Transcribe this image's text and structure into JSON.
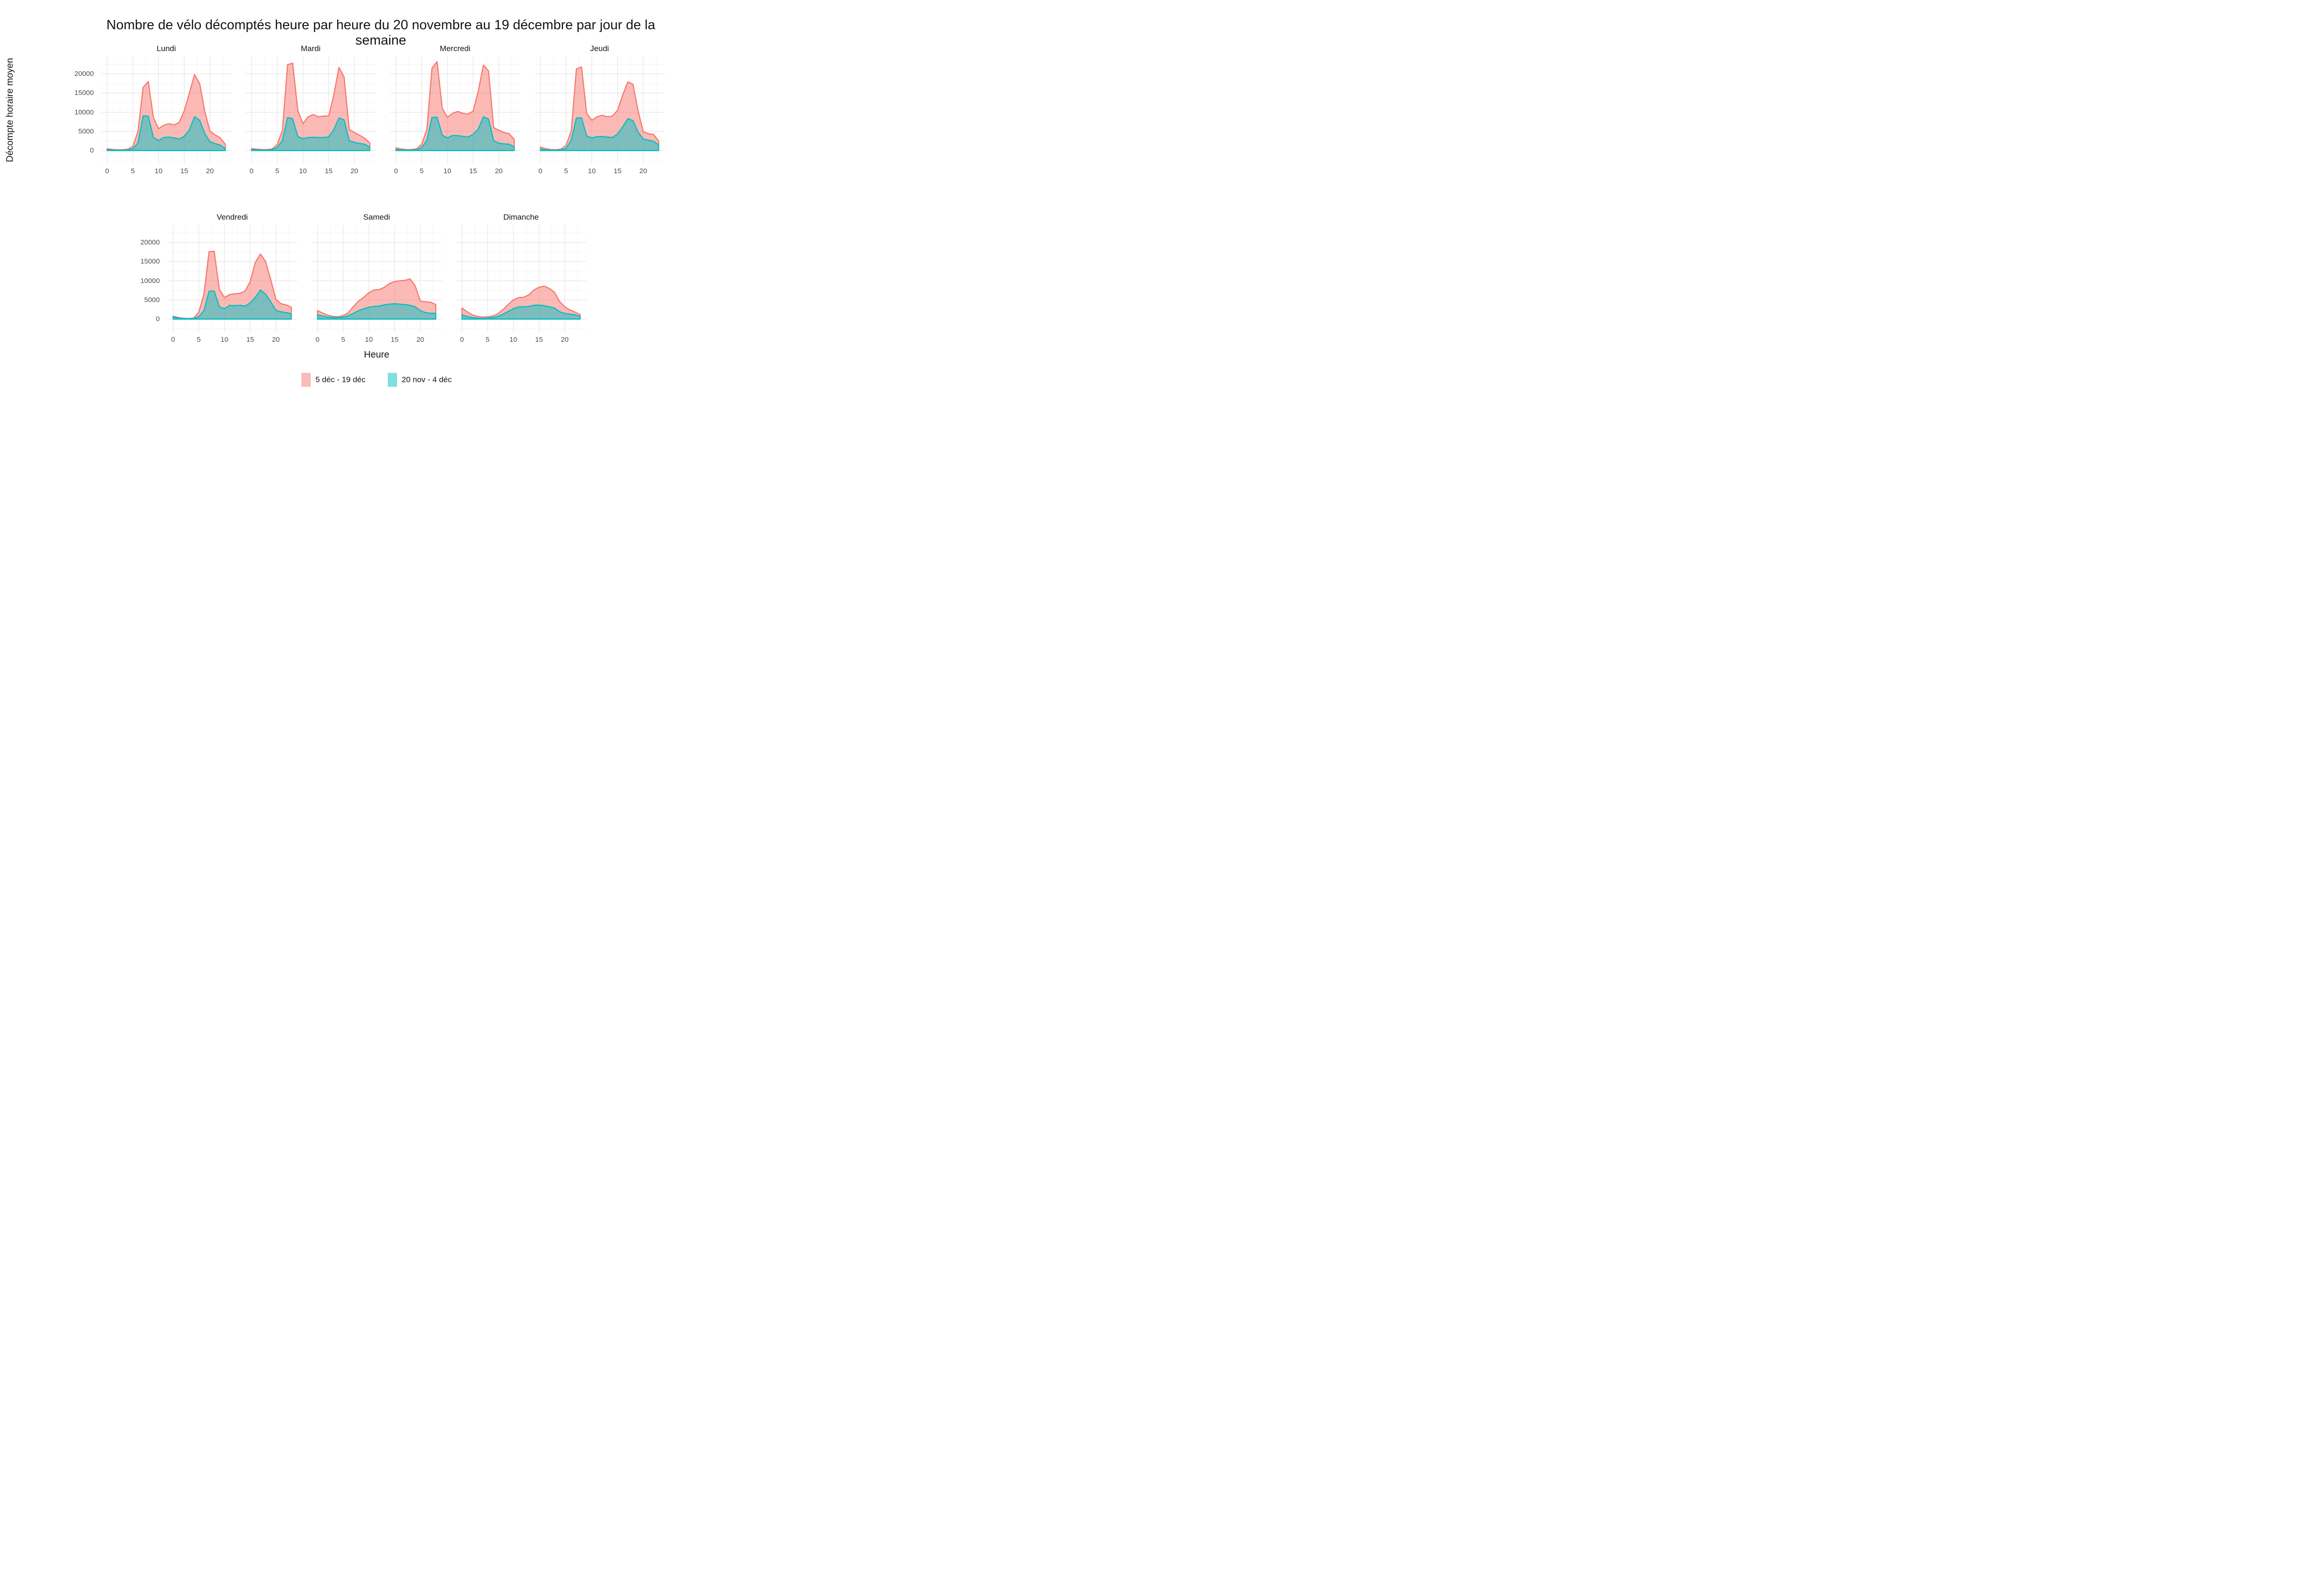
{
  "title": "Nombre de vélo décomptés heure par heure du 20 novembre au 19 décembre par jour de la semaine",
  "axes": {
    "x_title": "Heure",
    "y_title": "Décompte horaire moyen",
    "x_ticks": [
      0,
      5,
      10,
      15,
      20
    ],
    "y_ticks": [
      20000,
      15000,
      10000,
      5000,
      0
    ]
  },
  "legend": {
    "items": [
      {
        "label": "5 déc - 19 déc",
        "stroke": "#F8766D",
        "fill": "#FBBBB6"
      },
      {
        "label": "20 nov - 4 déc",
        "stroke": "#00BFC4",
        "fill": "#80DFE2"
      }
    ]
  },
  "colors": {
    "background": "#FFFFFF",
    "grid_major": "#E4E4E4",
    "grid_minor": "#F2F2F2",
    "axis_text": "#4D4D4D",
    "text": "#141414",
    "series1_stroke": "#F8766D",
    "series1_fill": "rgba(248,118,109,0.5)",
    "series2_stroke": "#00BFC4",
    "series2_fill": "rgba(0,191,196,0.5)"
  },
  "chart_data": {
    "type": "area",
    "title": "Nombre de vélo décomptés heure par heure du 20 novembre au 19 décembre par jour de la semaine",
    "xlabel": "Heure",
    "ylabel": "Décompte horaire moyen",
    "legend_position": "bottom",
    "grid": true,
    "x": [
      0,
      1,
      2,
      3,
      4,
      5,
      6,
      7,
      8,
      9,
      10,
      11,
      12,
      13,
      14,
      15,
      16,
      17,
      18,
      19,
      20,
      21,
      22,
      23
    ],
    "xlim": [
      -1.15,
      24.15
    ],
    "ylim": [
      -3500,
      24500
    ],
    "x_major_gridlines": [
      0,
      5,
      10,
      15,
      20
    ],
    "x_minor_gridlines": [
      2.5,
      7.5,
      12.5,
      17.5,
      22.5
    ],
    "y_major_gridlines": [
      0,
      5000,
      10000,
      15000,
      20000
    ],
    "y_minor_gridlines": [
      -2500,
      2500,
      7500,
      12500,
      17500,
      22500
    ],
    "series_names": [
      "5 déc - 19 déc",
      "20 nov - 4 déc"
    ],
    "facets": [
      {
        "name": "Lundi",
        "series": [
          {
            "name": "5 déc - 19 déc",
            "values": [
              450,
              300,
              200,
              200,
              350,
              1100,
              5000,
              16500,
              18000,
              8600,
              5700,
              6600,
              7000,
              6700,
              7300,
              10400,
              15000,
              19800,
              17500,
              10200,
              5100,
              4100,
              3300,
              1600
            ]
          },
          {
            "name": "20 nov - 4 déc",
            "values": [
              200,
              120,
              80,
              80,
              150,
              500,
              2000,
              9000,
              9000,
              3400,
              2600,
              3400,
              3500,
              3300,
              3000,
              3700,
              5400,
              8800,
              7900,
              4400,
              2300,
              1800,
              1400,
              500
            ]
          }
        ]
      },
      {
        "name": "Mardi",
        "series": [
          {
            "name": "5 déc - 19 déc",
            "values": [
              500,
              350,
              250,
              250,
              400,
              1600,
              5200,
              22400,
              22800,
              10400,
              7000,
              8800,
              9400,
              8800,
              9000,
              9000,
              14500,
              21700,
              19200,
              5500,
              4700,
              4000,
              3200,
              2000
            ]
          },
          {
            "name": "20 nov - 4 déc",
            "values": [
              250,
              150,
              100,
              100,
              200,
              800,
              2600,
              8600,
              8300,
              3600,
              3100,
              3400,
              3450,
              3400,
              3400,
              3550,
              5450,
              8500,
              8000,
              2600,
              2100,
              1850,
              1650,
              850
            ]
          }
        ]
      },
      {
        "name": "Mercredi",
        "series": [
          {
            "name": "5 déc - 19 déc",
            "values": [
              700,
              400,
              250,
              250,
              450,
              1700,
              5500,
              21500,
              23200,
              11000,
              8700,
              9700,
              10200,
              9700,
              9500,
              10300,
              15500,
              22300,
              20800,
              6000,
              5300,
              4700,
              4400,
              2900
            ]
          },
          {
            "name": "20 nov - 4 déc",
            "values": [
              300,
              150,
              100,
              100,
              200,
              800,
              2600,
              8600,
              8700,
              4000,
              3300,
              3900,
              3900,
              3700,
              3500,
              4200,
              5600,
              8800,
              8200,
              2600,
              1900,
              1750,
              1650,
              950
            ]
          }
        ]
      },
      {
        "name": "Jeudi",
        "series": [
          {
            "name": "5 déc - 19 déc",
            "values": [
              900,
              500,
              250,
              200,
              350,
              1400,
              5200,
              21300,
              21800,
              9700,
              7900,
              8800,
              9200,
              8800,
              9000,
              10500,
              14500,
              17900,
              17300,
              10400,
              4900,
              4400,
              4200,
              2500
            ]
          },
          {
            "name": "20 nov - 4 déc",
            "values": [
              350,
              200,
              100,
              100,
              150,
              600,
              2700,
              8500,
              8500,
              3800,
              3300,
              3600,
              3650,
              3500,
              3400,
              4300,
              6200,
              8300,
              7800,
              4800,
              3000,
              2700,
              2400,
              1500
            ]
          }
        ]
      },
      {
        "name": "Vendredi",
        "series": [
          {
            "name": "5 déc - 19 déc",
            "values": [
              750,
              420,
              200,
              160,
              270,
              1780,
              6500,
              17600,
              17700,
              7800,
              5600,
              6400,
              6600,
              6700,
              7300,
              9800,
              14800,
              17000,
              15000,
              10300,
              5200,
              4000,
              3700,
              3100
            ]
          },
          {
            "name": "20 nov - 4 déc",
            "values": [
              550,
              270,
              140,
              110,
              140,
              620,
              2200,
              7300,
              7300,
              3220,
              2670,
              3600,
              3500,
              3600,
              3400,
              4200,
              5700,
              7600,
              6500,
              4500,
              2300,
              1900,
              1700,
              1400
            ]
          }
        ]
      },
      {
        "name": "Samedi",
        "series": [
          {
            "name": "5 déc - 19 déc",
            "values": [
              2200,
              1600,
              1000,
              700,
              600,
              900,
              1700,
              3300,
              4700,
              5700,
              6900,
              7600,
              7700,
              8300,
              9300,
              9800,
              10000,
              10100,
              10500,
              8700,
              4700,
              4500,
              4400,
              3800
            ]
          },
          {
            "name": "20 nov - 4 déc",
            "values": [
              1100,
              800,
              500,
              400,
              400,
              500,
              900,
              1500,
              2200,
              2700,
              3100,
              3300,
              3400,
              3700,
              3900,
              4000,
              3900,
              3800,
              3600,
              3200,
              2200,
              1700,
              1500,
              1500
            ]
          }
        ]
      },
      {
        "name": "Dimanche",
        "series": [
          {
            "name": "5 déc - 19 déc",
            "values": [
              2900,
              1900,
              1100,
              700,
              500,
              600,
              800,
              1400,
              2500,
              3800,
              5000,
              5600,
              5700,
              6300,
              7600,
              8300,
              8600,
              8000,
              7000,
              4600,
              3200,
              2400,
              1800,
              1200
            ]
          },
          {
            "name": "20 nov - 4 déc",
            "values": [
              1100,
              700,
              400,
              250,
              200,
              250,
              400,
              700,
              1300,
              2000,
              2700,
              3200,
              3200,
              3300,
              3600,
              3650,
              3500,
              3200,
              2900,
              1900,
              1500,
              1300,
              1100,
              700
            ]
          }
        ]
      }
    ]
  }
}
